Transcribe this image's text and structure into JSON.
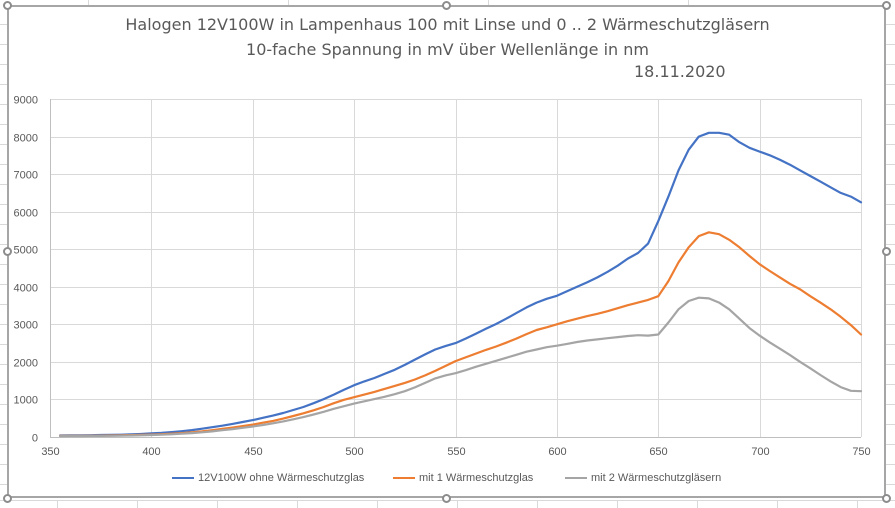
{
  "chart_data": {
    "type": "line",
    "title": "Halogen 12V100W in Lampenhaus 100 mit Linse und 0 .. 2 Wärmeschutzgläsern",
    "subtitle": "10-fache Spannung in mV über Wellenlänge in nm",
    "date": "18.11.2020",
    "xlabel": "",
    "ylabel": "",
    "xlim": [
      350,
      750
    ],
    "ylim": [
      0,
      9000
    ],
    "xticks": [
      350,
      400,
      450,
      500,
      550,
      600,
      650,
      700,
      750
    ],
    "yticks": [
      0,
      1000,
      2000,
      3000,
      4000,
      5000,
      6000,
      7000,
      8000,
      9000
    ],
    "grid": true,
    "legend_position": "bottom",
    "x": [
      355,
      360,
      365,
      370,
      375,
      380,
      385,
      390,
      395,
      400,
      405,
      410,
      415,
      420,
      425,
      430,
      435,
      440,
      445,
      450,
      455,
      460,
      465,
      470,
      475,
      480,
      485,
      490,
      495,
      500,
      505,
      510,
      515,
      520,
      525,
      530,
      535,
      540,
      545,
      550,
      555,
      560,
      565,
      570,
      575,
      580,
      585,
      590,
      595,
      600,
      605,
      610,
      615,
      620,
      625,
      630,
      635,
      640,
      645,
      650,
      655,
      660,
      665,
      670,
      675,
      680,
      685,
      690,
      695,
      700,
      705,
      710,
      715,
      720,
      725,
      730,
      735,
      740,
      745,
      750
    ],
    "series": [
      {
        "name": "12V100W ohne Wärmeschutzglas",
        "color": "#4472c4",
        "values": [
          40,
          42,
          45,
          48,
          52,
          56,
          62,
          70,
          80,
          95,
          110,
          130,
          155,
          185,
          220,
          260,
          300,
          350,
          400,
          450,
          510,
          570,
          640,
          720,
          800,
          900,
          1010,
          1130,
          1260,
          1380,
          1480,
          1570,
          1680,
          1790,
          1920,
          2060,
          2200,
          2330,
          2420,
          2500,
          2620,
          2750,
          2880,
          3010,
          3150,
          3300,
          3450,
          3580,
          3680,
          3760,
          3880,
          4000,
          4120,
          4250,
          4400,
          4560,
          4750,
          4900,
          5150,
          5750,
          6400,
          7100,
          7650,
          8000,
          8100,
          8100,
          8050,
          7850,
          7700,
          7600,
          7500,
          7380,
          7250,
          7100,
          6950,
          6800,
          6650,
          6500,
          6400,
          6250
        ]
      },
      {
        "name": "mit 1 Wärmeschutzglas",
        "color": "#ed7d31",
        "values": [
          30,
          31,
          33,
          35,
          37,
          40,
          44,
          50,
          57,
          65,
          75,
          88,
          105,
          125,
          150,
          180,
          215,
          250,
          290,
          330,
          380,
          430,
          490,
          560,
          630,
          710,
          800,
          900,
          990,
          1060,
          1130,
          1200,
          1280,
          1360,
          1440,
          1530,
          1640,
          1760,
          1890,
          2020,
          2120,
          2220,
          2320,
          2410,
          2510,
          2620,
          2740,
          2850,
          2920,
          3000,
          3080,
          3150,
          3220,
          3280,
          3350,
          3430,
          3510,
          3580,
          3650,
          3750,
          4150,
          4650,
          5050,
          5350,
          5450,
          5400,
          5250,
          5050,
          4820,
          4600,
          4420,
          4250,
          4080,
          3930,
          3750,
          3580,
          3400,
          3200,
          2980,
          2730
        ]
      },
      {
        "name": "mit 2 Wärmeschutzgläsern",
        "color": "#a5a5a5",
        "values": [
          25,
          26,
          27,
          28,
          30,
          32,
          35,
          40,
          45,
          52,
          60,
          72,
          87,
          105,
          125,
          150,
          180,
          210,
          245,
          280,
          320,
          365,
          415,
          470,
          530,
          600,
          670,
          750,
          820,
          890,
          950,
          1010,
          1070,
          1140,
          1220,
          1320,
          1440,
          1560,
          1640,
          1700,
          1780,
          1870,
          1950,
          2030,
          2110,
          2190,
          2270,
          2330,
          2390,
          2430,
          2480,
          2530,
          2570,
          2600,
          2630,
          2660,
          2690,
          2710,
          2700,
          2730,
          3050,
          3400,
          3620,
          3710,
          3690,
          3580,
          3400,
          3150,
          2900,
          2700,
          2520,
          2350,
          2180,
          2000,
          1830,
          1650,
          1480,
          1330,
          1230,
          1220
        ]
      }
    ]
  }
}
